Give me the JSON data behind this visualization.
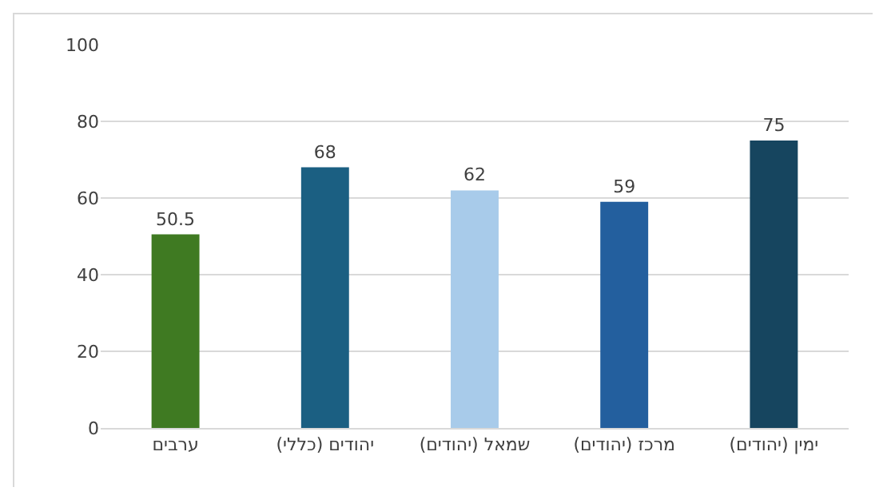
{
  "chart_data": {
    "type": "bar",
    "categories": [
      "ערבים",
      "יהודים (כללי)",
      "שמאל (יהודים)",
      "מרכז (יהודים)",
      "ימין (יהודים)"
    ],
    "values": [
      50.5,
      68,
      62,
      59,
      75
    ],
    "colors": [
      "#3f7a22",
      "#1b5f82",
      "#a8cbea",
      "#235f9e",
      "#16455f"
    ],
    "ylim": [
      0,
      100
    ],
    "yticks": [
      0,
      20,
      40,
      60,
      80,
      100
    ],
    "grid": "y",
    "data_labels": true
  }
}
